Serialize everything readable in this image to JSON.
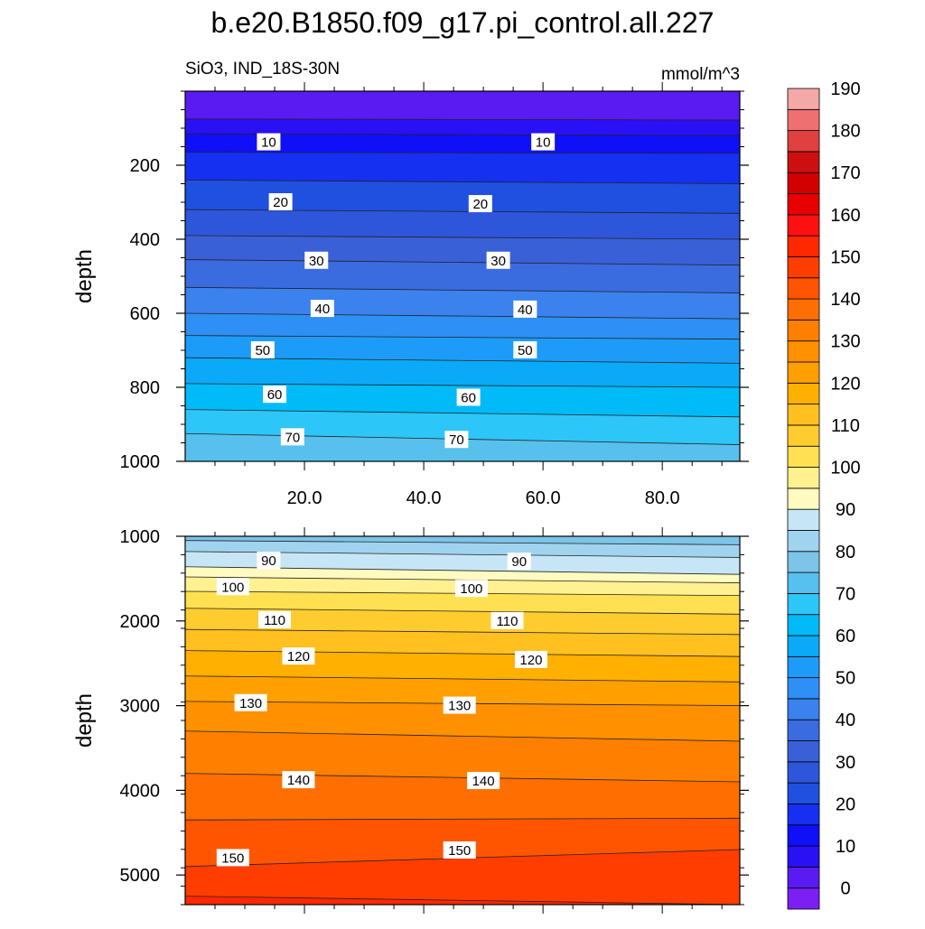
{
  "title": "b.e20.B1850.f09_g17.pi_control.all.227",
  "subtitle_left": "SiO3, IND_18S-30N",
  "subtitle_right": "mmol/m^3",
  "colorbar": {
    "colors": [
      "#7B1FF2",
      "#5A1AF2",
      "#2A10F4",
      "#1010F8",
      "#1530F0",
      "#2050E0",
      "#2E56DA",
      "#3A60D8",
      "#3A6CE0",
      "#3B82EE",
      "#2E8FF4",
      "#1C9CF8",
      "#0AAAF8",
      "#00BBF8",
      "#2CC6F8",
      "#58C0EC",
      "#7CC4E8",
      "#A0D4EE",
      "#C6E6F6",
      "#FFFAC0",
      "#FFF090",
      "#FFE050",
      "#FFCC30",
      "#FFC020",
      "#FFB000",
      "#FFA000",
      "#FF9000",
      "#FF8000",
      "#FF6E00",
      "#FF5500",
      "#FF3D00",
      "#FF2800",
      "#FF1010",
      "#E80000",
      "#D20000",
      "#CC1010",
      "#E04040",
      "#EE7070",
      "#F5A8A8"
    ],
    "labels": [
      "0",
      "10",
      "20",
      "30",
      "40",
      "50",
      "60",
      "70",
      "80",
      "90",
      "100",
      "110",
      "120",
      "130",
      "140",
      "150",
      "160",
      "170",
      "180",
      "190"
    ]
  },
  "chart_data": [
    {
      "type": "contour",
      "variable": "SiO3",
      "region": "IND_18S-30N",
      "units": "mmol/m^3",
      "ylabel": "depth",
      "xlim": [
        0,
        93
      ],
      "ylim": [
        1000,
        0
      ],
      "xticks": [
        20,
        40,
        60,
        80
      ],
      "xtick_labels": [
        "20.0",
        "40.0",
        "60.0",
        "80.0"
      ],
      "yticks": [
        200,
        400,
        600,
        800,
        1000
      ],
      "ytick_labels": [
        "200",
        "400",
        "600",
        "800",
        "1000"
      ],
      "contour_interval": 5,
      "contours": [
        {
          "level": 5,
          "depth": [
            75,
            78
          ]
        },
        {
          "level": 10,
          "depth": [
            115,
            120
          ]
        },
        {
          "level": 15,
          "depth": [
            165,
            168
          ]
        },
        {
          "level": 20,
          "depth": [
            240,
            250
          ]
        },
        {
          "level": 25,
          "depth": [
            320,
            330
          ]
        },
        {
          "level": 30,
          "depth": [
            390,
            400
          ]
        },
        {
          "level": 35,
          "depth": [
            455,
            470
          ]
        },
        {
          "level": 40,
          "depth": [
            530,
            545
          ]
        },
        {
          "level": 45,
          "depth": [
            600,
            615
          ]
        },
        {
          "level": 50,
          "depth": [
            660,
            670
          ]
        },
        {
          "level": 55,
          "depth": [
            720,
            735
          ]
        },
        {
          "level": 60,
          "depth": [
            790,
            800
          ]
        },
        {
          "level": 65,
          "depth": [
            860,
            880
          ]
        },
        {
          "level": 70,
          "depth": [
            925,
            955
          ]
        }
      ],
      "labels": [
        {
          "text": "10",
          "x": 14,
          "depth": 138
        },
        {
          "text": "10",
          "x": 60,
          "depth": 138
        },
        {
          "text": "20",
          "x": 16,
          "depth": 300
        },
        {
          "text": "20",
          "x": 49.5,
          "depth": 305
        },
        {
          "text": "30",
          "x": 22,
          "depth": 458
        },
        {
          "text": "30",
          "x": 52.5,
          "depth": 458
        },
        {
          "text": "40",
          "x": 23,
          "depth": 588
        },
        {
          "text": "40",
          "x": 57,
          "depth": 590
        },
        {
          "text": "50",
          "x": 13,
          "depth": 700
        },
        {
          "text": "50",
          "x": 57,
          "depth": 700
        },
        {
          "text": "60",
          "x": 15,
          "depth": 820
        },
        {
          "text": "60",
          "x": 47.5,
          "depth": 828
        },
        {
          "text": "70",
          "x": 18,
          "depth": 935
        },
        {
          "text": "70",
          "x": 45.5,
          "depth": 942
        }
      ]
    },
    {
      "type": "contour",
      "variable": "SiO3",
      "region": "IND_18S-30N",
      "units": "mmol/m^3",
      "ylabel": "depth",
      "xlim": [
        0,
        93
      ],
      "ylim": [
        5350,
        1000
      ],
      "xticks": [
        20,
        40,
        60,
        80
      ],
      "yticks": [
        1000,
        2000,
        3000,
        4000,
        5000
      ],
      "ytick_labels": [
        "1000",
        "2000",
        "3000",
        "4000",
        "5000"
      ],
      "contour_interval": 5,
      "contours": [
        {
          "level": 80,
          "depth": [
            1050,
            1100
          ]
        },
        {
          "level": 85,
          "depth": [
            1180,
            1250
          ]
        },
        {
          "level": 90,
          "depth": [
            1360,
            1450
          ]
        },
        {
          "level": 95,
          "depth": [
            1480,
            1550
          ]
        },
        {
          "level": 100,
          "depth": [
            1650,
            1700
          ]
        },
        {
          "level": 105,
          "depth": [
            1850,
            1920
          ]
        },
        {
          "level": 110,
          "depth": [
            2100,
            2160
          ]
        },
        {
          "level": 115,
          "depth": [
            2350,
            2420
          ]
        },
        {
          "level": 120,
          "depth": [
            2650,
            2720
          ]
        },
        {
          "level": 125,
          "depth": [
            2950,
            3000
          ]
        },
        {
          "level": 130,
          "depth": [
            3300,
            3420
          ]
        },
        {
          "level": 135,
          "depth": [
            3800,
            3900
          ]
        },
        {
          "level": 140,
          "depth": [
            4350,
            4330
          ]
        },
        {
          "level": 145,
          "depth": [
            4900,
            4700
          ]
        },
        {
          "level": 150,
          "depth": [
            5250,
            5350
          ]
        }
      ],
      "labels": [
        {
          "text": "90",
          "x": 14,
          "depth": 1290
        },
        {
          "text": "90",
          "x": 56,
          "depth": 1300
        },
        {
          "text": "100",
          "x": 8,
          "depth": 1600
        },
        {
          "text": "100",
          "x": 48,
          "depth": 1620
        },
        {
          "text": "110",
          "x": 15,
          "depth": 1990
        },
        {
          "text": "110",
          "x": 54,
          "depth": 2000
        },
        {
          "text": "120",
          "x": 19,
          "depth": 2420
        },
        {
          "text": "120",
          "x": 58,
          "depth": 2460
        },
        {
          "text": "130",
          "x": 11,
          "depth": 2970
        },
        {
          "text": "130",
          "x": 46,
          "depth": 3000
        },
        {
          "text": "140",
          "x": 19,
          "depth": 3880
        },
        {
          "text": "140",
          "x": 50,
          "depth": 3890
        },
        {
          "text": "150",
          "x": 8,
          "depth": 4800
        },
        {
          "text": "150",
          "x": 46,
          "depth": 4710
        }
      ]
    }
  ]
}
